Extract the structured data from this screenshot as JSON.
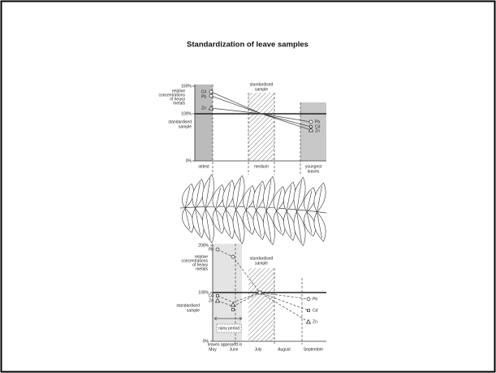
{
  "title": "Standardization of leave samples",
  "figure_top": {
    "y_labels": [
      "160%",
      "100%",
      "0%"
    ],
    "y_axis_label": [
      "relative",
      "concentrations",
      "of heavy",
      "metals"
    ],
    "reference_label": [
      "standardised",
      "sample"
    ],
    "band_label": [
      "standardised",
      "sample"
    ],
    "x_labels": [
      "oldest",
      "medium",
      "youngest",
      "leaves"
    ],
    "series_left": [
      "Cd",
      "Pb",
      "Zn"
    ],
    "series_right": [
      "Pb",
      "Cd",
      "Zn"
    ]
  },
  "figure_bottom": {
    "y_labels": [
      "200%",
      "100%",
      "0%"
    ],
    "y_axis_label": [
      "relative",
      "concentrations",
      "of heavy",
      "metals"
    ],
    "reference_label": [
      "standardised",
      "sample"
    ],
    "band_label": [
      "standardised",
      "sample"
    ],
    "period_label": "rainy period",
    "x_labels": [
      "leaves appeared in",
      "May",
      "June",
      "July",
      "August",
      "September"
    ],
    "series_left": [
      "Pb",
      "Cd",
      "Zn"
    ],
    "series_right": [
      "Pb",
      "Cd",
      "Zn"
    ]
  }
}
